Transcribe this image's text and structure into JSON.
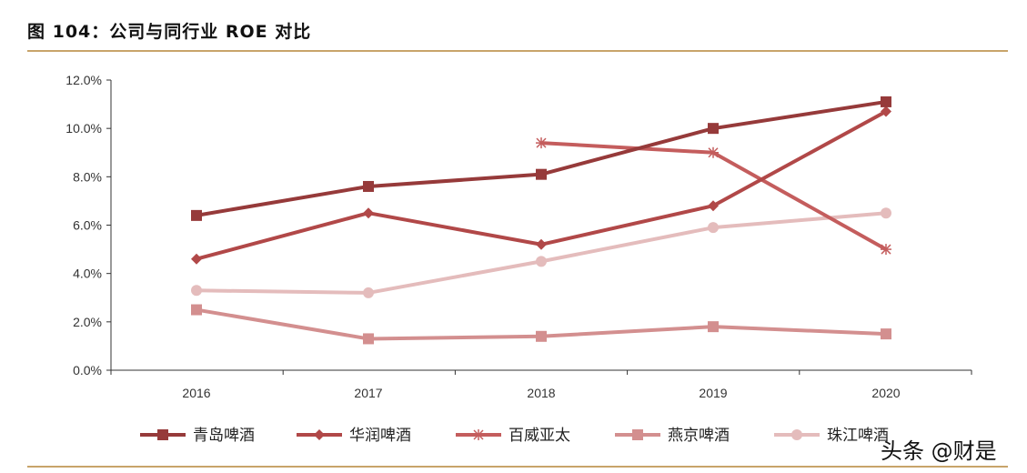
{
  "chart_data": {
    "type": "line",
    "title": "图 104：公司与同行业 ROE 对比",
    "categories": [
      "2016",
      "2017",
      "2018",
      "2019",
      "2020"
    ],
    "ylim": [
      0,
      12
    ],
    "yticks": [
      0,
      2,
      4,
      6,
      8,
      10,
      12
    ],
    "ytick_labels": [
      "0.0%",
      "2.0%",
      "4.0%",
      "6.0%",
      "8.0%",
      "10.0%",
      "12.0%"
    ],
    "xlabel": "",
    "ylabel": "",
    "legend_position": "bottom",
    "series": [
      {
        "name": "青岛啤酒",
        "values": [
          6.4,
          7.6,
          8.1,
          10.0,
          11.1
        ],
        "color": "#963a3a",
        "marker": "square"
      },
      {
        "name": "华润啤酒",
        "values": [
          4.6,
          6.5,
          5.2,
          6.8,
          10.7
        ],
        "color": "#b14848",
        "marker": "diamond"
      },
      {
        "name": "百威亚太",
        "values": [
          null,
          null,
          9.4,
          9.0,
          5.0
        ],
        "color": "#c45d5d",
        "marker": "asterisk"
      },
      {
        "name": "燕京啤酒",
        "values": [
          2.5,
          1.3,
          1.4,
          1.8,
          1.5
        ],
        "color": "#d38f8f",
        "marker": "square"
      },
      {
        "name": "珠江啤酒",
        "values": [
          3.3,
          3.2,
          4.5,
          5.9,
          6.5
        ],
        "color": "#e4bcbc",
        "marker": "circle"
      }
    ]
  },
  "watermark": "头条 @财是"
}
